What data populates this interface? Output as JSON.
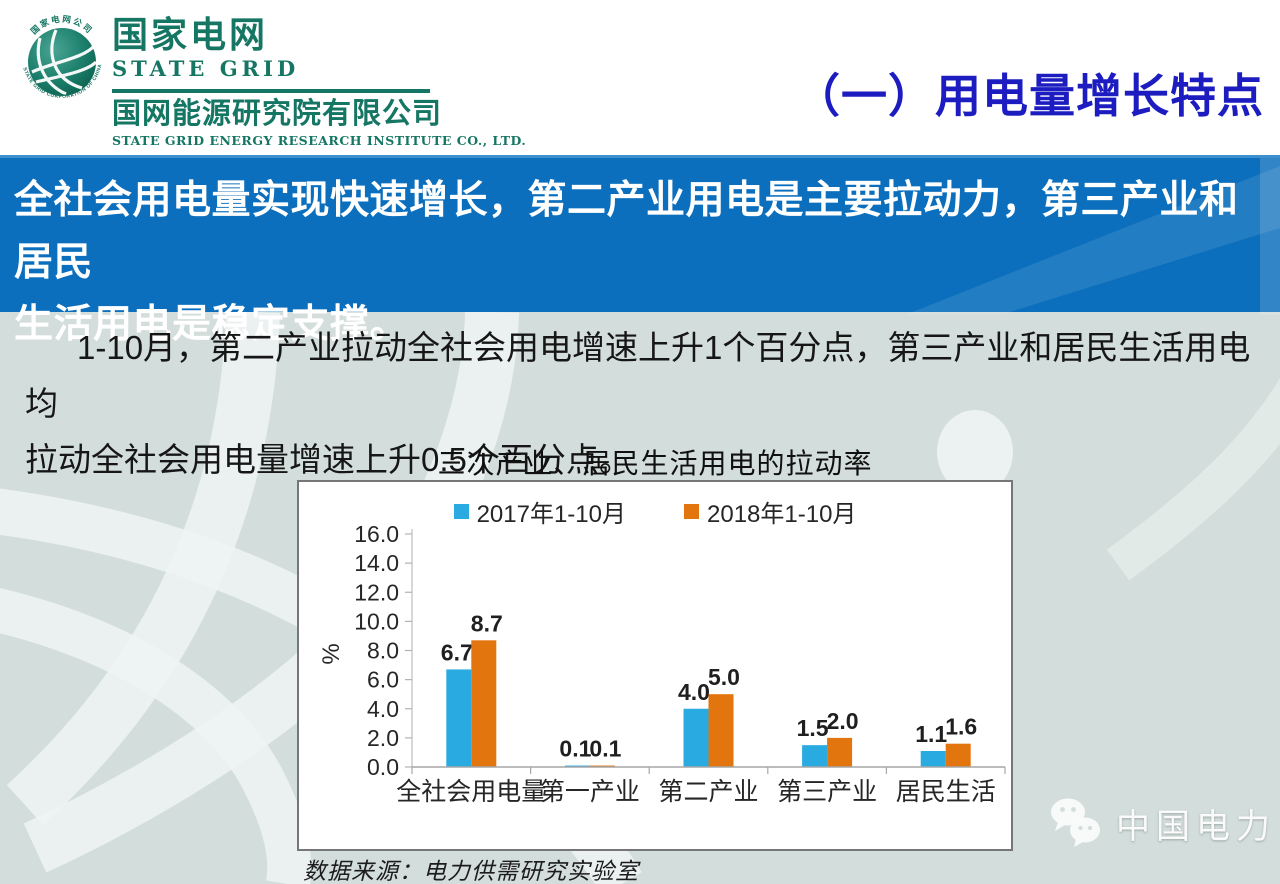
{
  "header": {
    "logo": {
      "brand_cn": "国家电网",
      "brand_en": "STATE GRID",
      "subsidiary_cn": "国网能源研究院有限公司",
      "subsidiary_en": "STATE GRID ENERGY RESEARCH INSTITUTE CO., LTD.",
      "emblem_text_top": "国家电网公司",
      "emblem_text_bottom": "STATE GRID CORPORATION OF CHINA"
    },
    "section_title": "（一）用电量增长特点"
  },
  "banner": {
    "lines": [
      "全社会用电量实现快速增长，第二产业用电是主要拉动力，第三产业和居民",
      "生活用电是稳定支撑。"
    ]
  },
  "body": {
    "lines": [
      "1-10月，第二产业拉动全社会用电增速上升1个百分点，第三产业和居民生活用电均",
      "拉动全社会用电量增速上升0.5个百分点。"
    ],
    "source_note": "数据来源：电力供需研究实验室"
  },
  "chart_data": {
    "type": "bar",
    "title": "三次产业、居民生活用电的拉动率",
    "xlabel": "",
    "ylabel": "%",
    "ylim": [
      0,
      16
    ],
    "ytick_step": 2,
    "grid": false,
    "legend_position": "top",
    "categories": [
      "全社会用电量",
      "第一产业",
      "第二产业",
      "第三产业",
      "居民生活"
    ],
    "series": [
      {
        "name": "2017年1-10月",
        "color": "#29abe2",
        "values": [
          6.7,
          0.1,
          4.0,
          1.5,
          1.1
        ]
      },
      {
        "name": "2018年1-10月",
        "color": "#e2750e",
        "values": [
          8.7,
          0.1,
          5.0,
          2.0,
          1.6
        ]
      }
    ]
  },
  "footer_badge": {
    "label": "中国电力",
    "icon": "wechat-icon"
  },
  "colors": {
    "background": "#d3dddb",
    "banner_bg": "#0b6fbd",
    "section_title_blue": "#1c1cc0",
    "logo_teal": "#157663",
    "series_2017": "#29abe2",
    "series_2018": "#e2750e",
    "chart_border": "#767676"
  }
}
